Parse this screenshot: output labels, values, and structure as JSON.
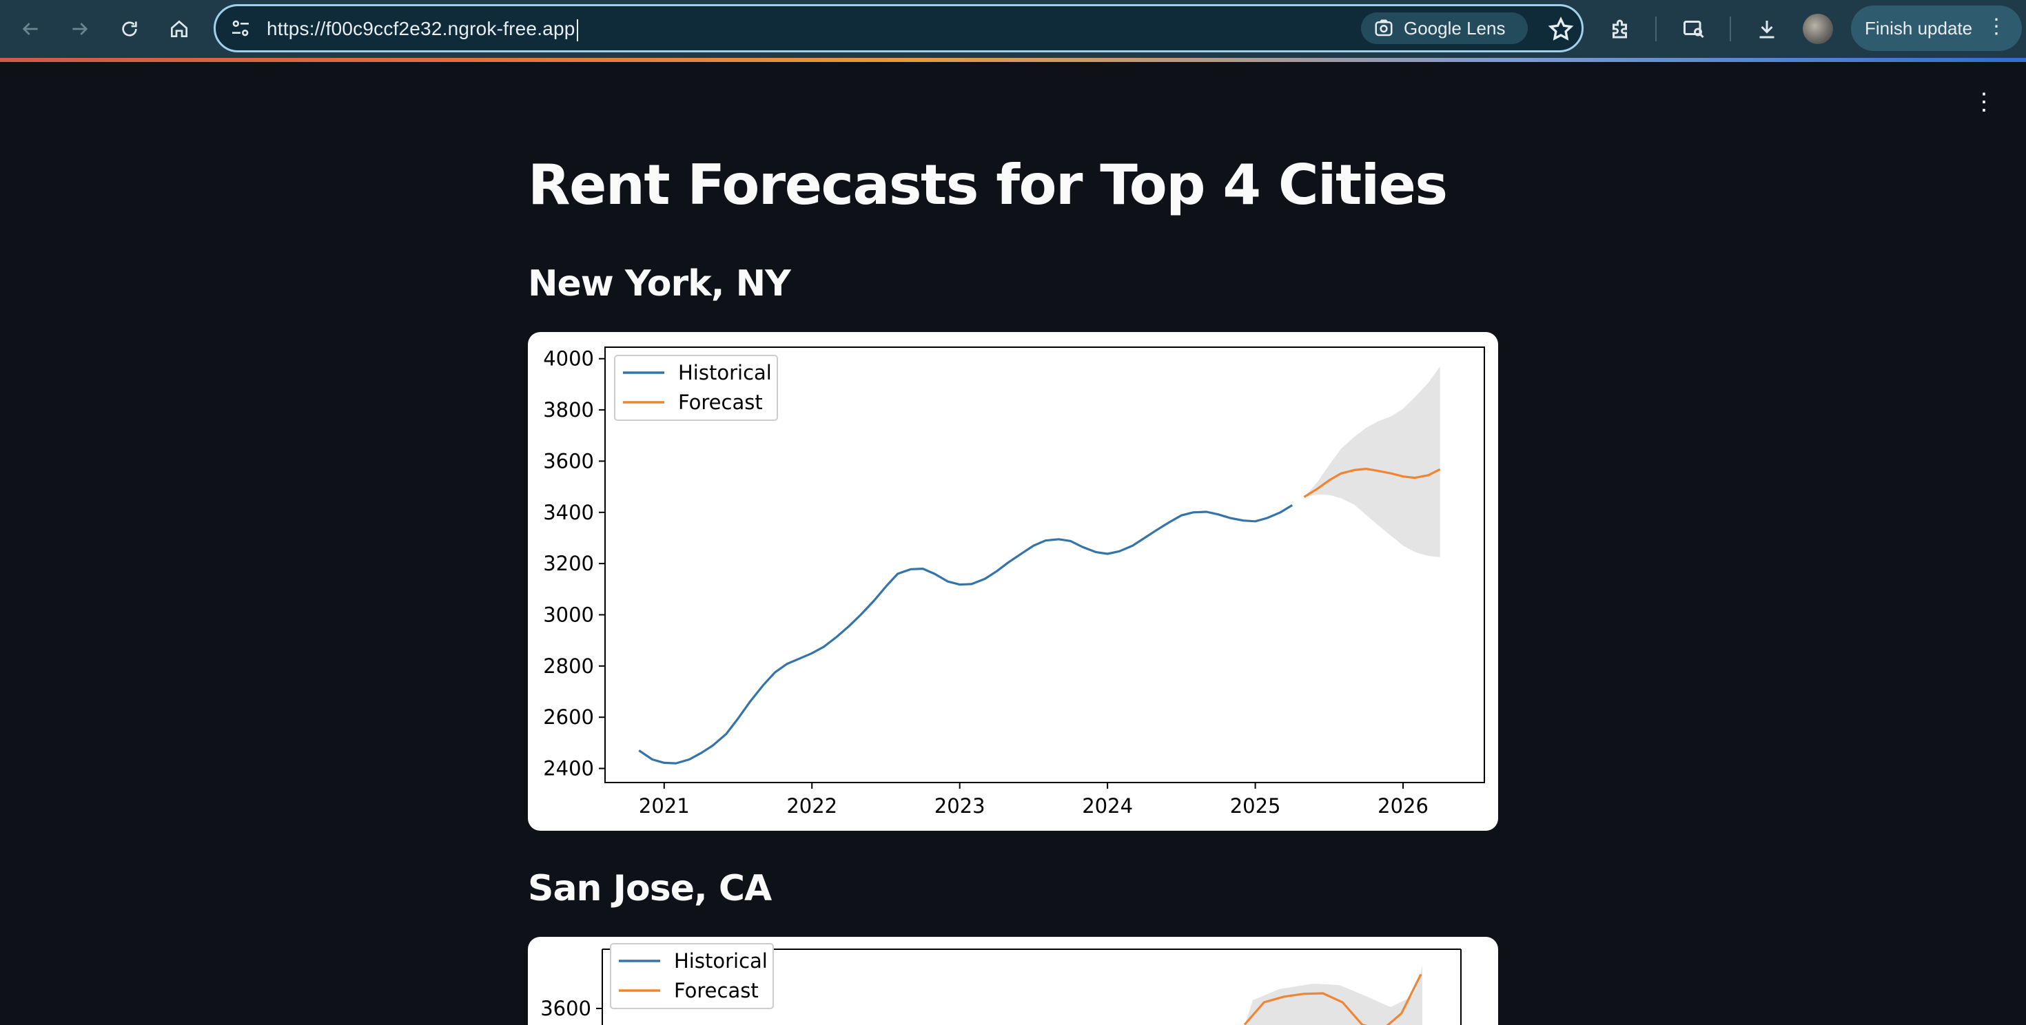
{
  "browser": {
    "url": "https://f00c9ccf2e32.ngrok-free.app",
    "lens_label": "Google Lens",
    "finish_update_label": "Finish update"
  },
  "page": {
    "title": "Rent Forecasts for Top 4 Cities"
  },
  "cities": [
    {
      "name": "New York, NY"
    },
    {
      "name": "San Jose, CA"
    }
  ],
  "colors": {
    "historical": "#3574a8",
    "forecast": "#ef8532",
    "band": "#e4e4e4",
    "background": "#0e1117"
  },
  "chart_data": [
    {
      "type": "line",
      "title": "",
      "xlabel": "",
      "ylabel": "",
      "xlim": [
        2020.6,
        2026.55
      ],
      "ylim": [
        2345,
        4045
      ],
      "x_ticks": [
        "2021",
        "2022",
        "2023",
        "2024",
        "2025",
        "2026"
      ],
      "y_ticks": [
        2400,
        2600,
        2800,
        3000,
        3200,
        3400,
        3600,
        3800,
        4000
      ],
      "legend": {
        "position": "top-left",
        "entries": [
          "Historical",
          "Forecast"
        ]
      },
      "grid": false,
      "series": [
        {
          "name": "Historical",
          "x": [
            2020.83,
            2020.92,
            2021.0,
            2021.08,
            2021.17,
            2021.25,
            2021.33,
            2021.42,
            2021.5,
            2021.58,
            2021.67,
            2021.75,
            2021.83,
            2021.92,
            2022.0,
            2022.08,
            2022.17,
            2022.25,
            2022.33,
            2022.42,
            2022.5,
            2022.58,
            2022.67,
            2022.75,
            2022.83,
            2022.92,
            2023.0,
            2023.08,
            2023.17,
            2023.25,
            2023.33,
            2023.42,
            2023.5,
            2023.58,
            2023.67,
            2023.75,
            2023.83,
            2023.92,
            2024.0,
            2024.08,
            2024.17,
            2024.25,
            2024.33,
            2024.42,
            2024.5,
            2024.58,
            2024.67,
            2024.75,
            2024.83,
            2024.92,
            2025.0,
            2025.08,
            2025.17,
            2025.25
          ],
          "values": [
            2470,
            2435,
            2422,
            2420,
            2435,
            2460,
            2490,
            2535,
            2595,
            2660,
            2725,
            2775,
            2808,
            2830,
            2850,
            2875,
            2915,
            2955,
            3000,
            3055,
            3110,
            3160,
            3178,
            3180,
            3160,
            3130,
            3118,
            3120,
            3140,
            3170,
            3205,
            3240,
            3270,
            3290,
            3295,
            3288,
            3265,
            3245,
            3238,
            3248,
            3270,
            3300,
            3330,
            3362,
            3388,
            3400,
            3402,
            3392,
            3378,
            3368,
            3365,
            3378,
            3400,
            3428
          ]
        },
        {
          "name": "Forecast",
          "x": [
            2025.33,
            2025.42,
            2025.5,
            2025.58,
            2025.67,
            2025.75,
            2025.83,
            2025.92,
            2026.0,
            2026.08,
            2026.17,
            2026.25
          ],
          "values": [
            3460,
            3492,
            3525,
            3552,
            3565,
            3570,
            3562,
            3552,
            3540,
            3535,
            3545,
            3568
          ],
          "lower": [
            3460,
            3470,
            3468,
            3455,
            3430,
            3390,
            3350,
            3308,
            3270,
            3245,
            3230,
            3225
          ],
          "upper": [
            3460,
            3518,
            3585,
            3648,
            3695,
            3730,
            3755,
            3775,
            3805,
            3850,
            3905,
            3970
          ]
        }
      ]
    },
    {
      "type": "line",
      "title": "",
      "xlabel": "",
      "ylabel": "",
      "y_ticks": [
        3600
      ],
      "legend": {
        "position": "top-left",
        "entries": [
          "Historical",
          "Forecast"
        ]
      },
      "grid": false,
      "series": [
        {
          "name": "Historical",
          "values": []
        },
        {
          "name": "Forecast",
          "values": [
            3540,
            3580,
            3590,
            3595,
            3596,
            3580,
            3540,
            3530,
            3560,
            3630
          ]
        }
      ]
    }
  ]
}
